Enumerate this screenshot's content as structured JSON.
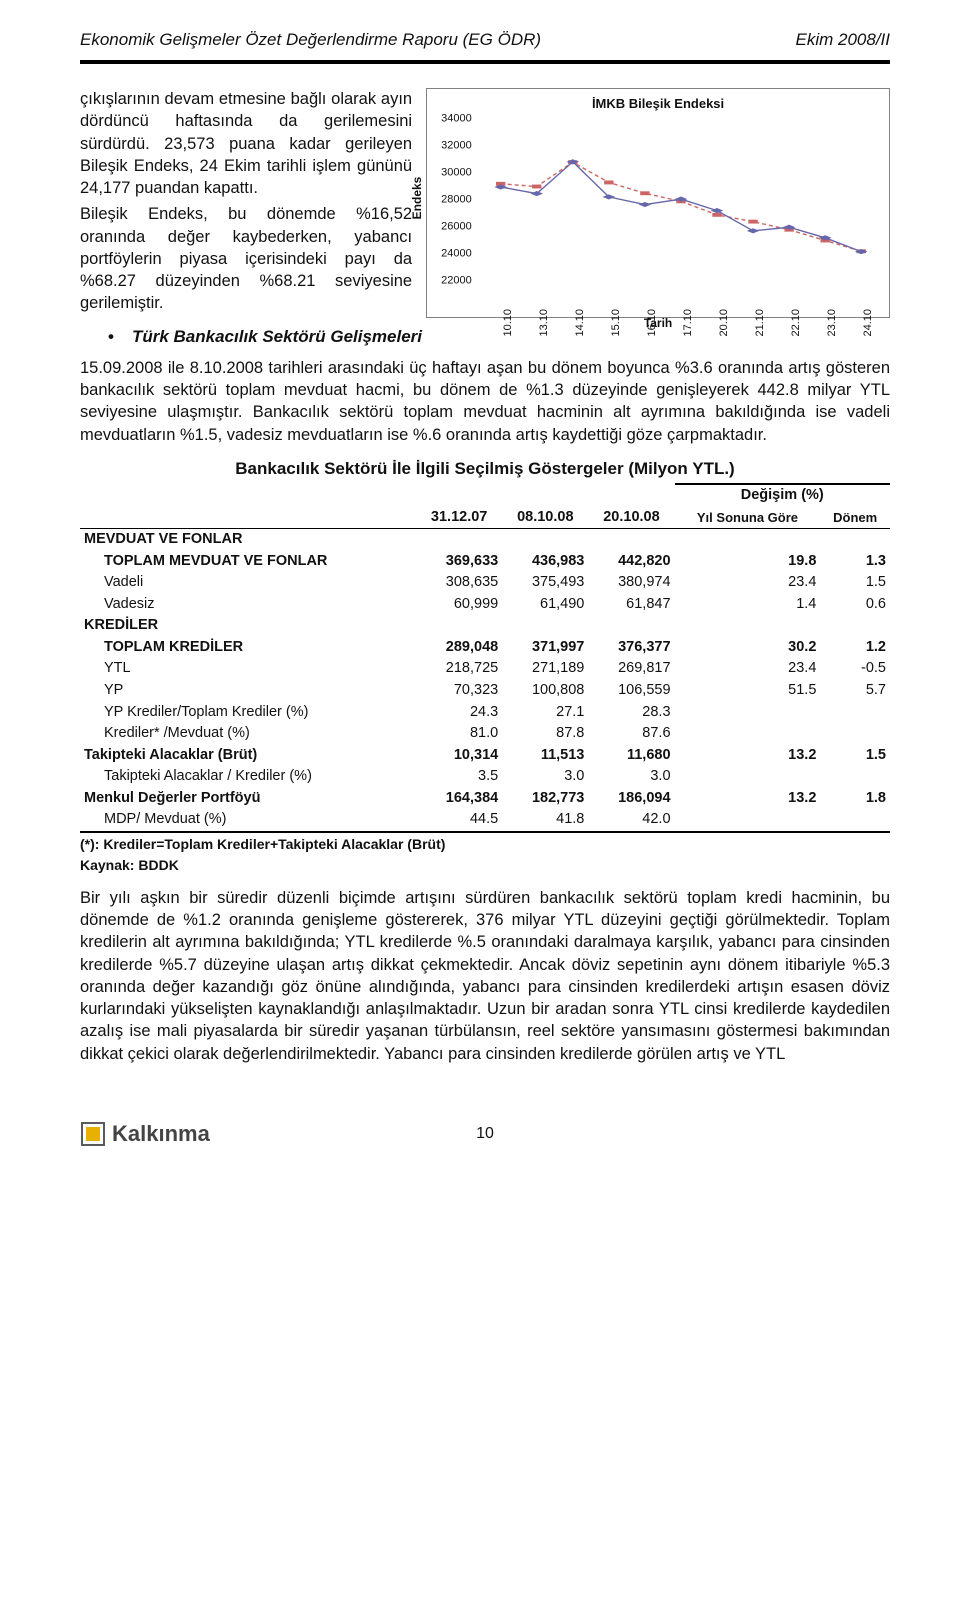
{
  "header": {
    "left": "Ekonomik Gelişmeler Özet Değerlendirme Raporu (EG ÖDR)",
    "right": "Ekim 2008/II"
  },
  "left_para": "çıkışlarının devam etmesine bağlı olarak ayın dördüncü haftasında da gerilemesini sürdürdü. 23,573 puana kadar gerileyen Bileşik Endeks, 24 Ekim tarihli işlem gününü 24,177 puandan kapattı.\nBileşik Endeks, bu dönemde %16,52 oranında değer kaybederken, yabancı portföylerin piyasa içerisindeki payı da %68.27 düzeyinden %68.21 seviyesine gerilemiştir.",
  "right_first_line_start": "bağlı  olarak  ayın  dördüncü  haftasında  da",
  "chart": {
    "title": "İMKB Bileşik Endeksi",
    "ylabel": "Endeks",
    "xlabel": "Tarih",
    "ymin": 22000,
    "ymax": 34000,
    "ystep": 2000,
    "xticks": [
      "10.10",
      "13.10",
      "14.10",
      "15.10",
      "16.10",
      "17.10",
      "20.10",
      "21.10",
      "22.10",
      "23.10",
      "24.10"
    ],
    "solid": [
      28964,
      28475,
      30831,
      28229,
      27663,
      28065,
      27213,
      25717,
      25981,
      25200,
      24177
    ],
    "dashed": [
      29200,
      29000,
      30800,
      29300,
      28500,
      27900,
      26900,
      26400,
      25800,
      25000,
      24200
    ],
    "solid_color": "#6666aa",
    "dashed_color": "#cc6666",
    "marker_size": 5,
    "grid_color": "#808080",
    "frame_color": "#808080",
    "background": "#ffffff"
  },
  "bullet": "Türk Bankacılık Sektörü Gelişmeleri",
  "para2": "15.09.2008 ile 8.10.2008 tarihleri arasındaki üç haftayı aşan bu dönem boyunca %3.6 oranında artış gösteren bankacılık sektörü toplam mevduat hacmi, bu dönem de %1.3 düzeyinde genişleyerek 442.8 milyar YTL seviyesine ulaşmıştır. Bankacılık sektörü toplam mevduat hacminin alt ayrımına bakıldığında ise vadeli mevduatların %1.5, vadesiz mevduatların ise %.6 oranında artış kaydettiği göze çarpmaktadır.",
  "table": {
    "title": "Bankacılık Sektörü İle İlgili Seçilmiş Göstergeler  (Milyon YTL.)",
    "col_dates": [
      "31.12.07",
      "08.10.08",
      "20.10.08"
    ],
    "change_header": "Değişim (%)",
    "change_sub": [
      "Yıl Sonuna Göre",
      "Dönem"
    ],
    "rows": [
      {
        "label": "MEVDUAT VE FONLAR",
        "bold": true,
        "indent": 0,
        "vals": [
          "",
          "",
          "",
          "",
          ""
        ]
      },
      {
        "label": "TOPLAM MEVDUAT VE FONLAR",
        "bold": true,
        "indent": 1,
        "vals": [
          "369,633",
          "436,983",
          "442,820",
          "19.8",
          "1.3"
        ]
      },
      {
        "label": "Vadeli",
        "bold": false,
        "indent": 2,
        "vals": [
          "308,635",
          "375,493",
          "380,974",
          "23.4",
          "1.5"
        ]
      },
      {
        "label": "Vadesiz",
        "bold": false,
        "indent": 2,
        "vals": [
          "60,999",
          "61,490",
          "61,847",
          "1.4",
          "0.6"
        ]
      },
      {
        "label": "KREDİLER",
        "bold": true,
        "indent": 0,
        "vals": [
          "",
          "",
          "",
          "",
          ""
        ]
      },
      {
        "label": "TOPLAM KREDİLER",
        "bold": true,
        "indent": 1,
        "vals": [
          "289,048",
          "371,997",
          "376,377",
          "30.2",
          "1.2"
        ]
      },
      {
        "label": "YTL",
        "bold": false,
        "indent": 2,
        "vals": [
          "218,725",
          "271,189",
          "269,817",
          "23.4",
          "-0.5"
        ]
      },
      {
        "label": "YP",
        "bold": false,
        "indent": 2,
        "vals": [
          "70,323",
          "100,808",
          "106,559",
          "51.5",
          "5.7"
        ]
      },
      {
        "label": "YP Krediler/Toplam Krediler (%)",
        "bold": false,
        "indent": 1,
        "vals": [
          "24.3",
          "27.1",
          "28.3",
          "",
          ""
        ]
      },
      {
        "label": "Krediler* /Mevduat (%)",
        "bold": false,
        "indent": 1,
        "vals": [
          "81.0",
          "87.8",
          "87.6",
          "",
          ""
        ]
      },
      {
        "label": "Takipteki Alacaklar (Brüt)",
        "bold": true,
        "indent": 0,
        "vals": [
          "10,314",
          "11,513",
          "11,680",
          "13.2",
          "1.5"
        ]
      },
      {
        "label": "Takipteki Alacaklar / Krediler (%)",
        "bold": false,
        "indent": 1,
        "vals": [
          "3.5",
          "3.0",
          "3.0",
          "",
          ""
        ]
      },
      {
        "label": "Menkul Değerler Portföyü",
        "bold": true,
        "indent": 0,
        "vals": [
          "164,384",
          "182,773",
          "186,094",
          "13.2",
          "1.8"
        ]
      },
      {
        "label": "MDP/ Mevduat (%)",
        "bold": false,
        "indent": 1,
        "vals": [
          "44.5",
          "41.8",
          "42.0",
          "",
          ""
        ]
      }
    ],
    "footnote1": "(*): Krediler=Toplam Krediler+Takipteki Alacaklar (Brüt)",
    "footnote2": "Kaynak: BDDK"
  },
  "para3": "Bir yılı aşkın bir süredir düzenli biçimde artışını sürdüren bankacılık sektörü toplam kredi hacminin, bu dönemde de %1.2 oranında genişleme göstererek, 376 milyar YTL düzeyini geçtiği görülmektedir. Toplam kredilerin alt ayrımına bakıldığında; YTL kredilerde %.5 oranındaki daralmaya karşılık, yabancı para cinsinden kredilerde %5.7 düzeyine ulaşan artış dikkat çekmektedir. Ancak döviz sepetinin aynı dönem itibariyle %5.3 oranında değer kazandığı göz önüne alındığında, yabancı para cinsinden kredilerdeki artışın esasen döviz kurlarındaki yükselişten kaynaklandığı anlaşılmaktadır. Uzun bir aradan sonra YTL cinsi kredilerde kaydedilen azalış ise mali piyasalarda bir süredir yaşanan türbülansın, reel sektöre yansımasını göstermesi bakımından dikkat çekici olarak değerlendirilmektedir. Yabancı para cinsinden kredilerde görülen artış ve YTL",
  "footer": {
    "logo_text": "Kalkınma",
    "page": "10"
  },
  "colors": {
    "logo_yellow": "#e8b000",
    "logo_grey": "#5a5a5a"
  }
}
